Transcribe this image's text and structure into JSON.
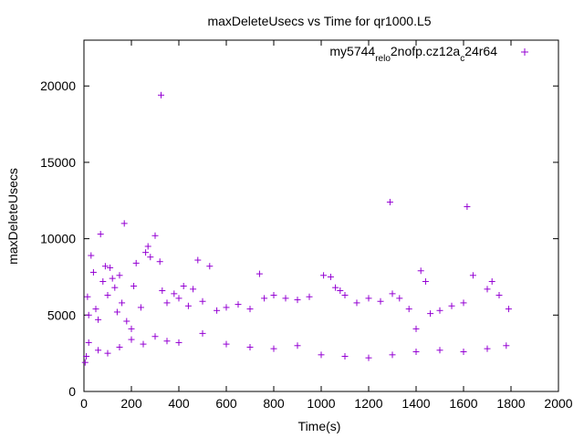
{
  "chart_data": {
    "type": "scatter",
    "title": "maxDeleteUsecs vs Time for qr1000.L5",
    "xlabel": "Time(s)",
    "ylabel": "maxDeleteUsecs",
    "xlim": [
      0,
      2000
    ],
    "ylim": [
      0,
      23000
    ],
    "xticks": [
      "0",
      "200",
      "400",
      "600",
      "800",
      "1000",
      "1200",
      "1400",
      "1600",
      "1800",
      "2000"
    ],
    "yticks": [
      "0",
      "5000",
      "10000",
      "15000",
      "20000"
    ],
    "grid": false,
    "legend_position": "top-right",
    "series": [
      {
        "legend": {
          "parts": [
            "my5744",
            "rel",
            "o",
            "2nofp.cz12a",
            "c",
            "24r64"
          ]
        },
        "color": "#9400d3",
        "marker": "plus",
        "points": [
          [
            5,
            1900
          ],
          [
            10,
            2300
          ],
          [
            15,
            6200
          ],
          [
            20,
            5000
          ],
          [
            30,
            8900
          ],
          [
            40,
            7800
          ],
          [
            50,
            5400
          ],
          [
            60,
            4700
          ],
          [
            70,
            10300
          ],
          [
            80,
            7200
          ],
          [
            90,
            8200
          ],
          [
            100,
            6300
          ],
          [
            110,
            8100
          ],
          [
            120,
            7400
          ],
          [
            130,
            6800
          ],
          [
            140,
            5200
          ],
          [
            150,
            7600
          ],
          [
            160,
            5800
          ],
          [
            170,
            11000
          ],
          [
            180,
            4600
          ],
          [
            200,
            4100
          ],
          [
            210,
            6900
          ],
          [
            220,
            8400
          ],
          [
            240,
            5500
          ],
          [
            260,
            9100
          ],
          [
            270,
            9500
          ],
          [
            280,
            8800
          ],
          [
            300,
            10200
          ],
          [
            320,
            8500
          ],
          [
            325,
            19400
          ],
          [
            330,
            6600
          ],
          [
            350,
            5800
          ],
          [
            380,
            6400
          ],
          [
            400,
            6100
          ],
          [
            420,
            6900
          ],
          [
            440,
            5600
          ],
          [
            460,
            6700
          ],
          [
            480,
            8600
          ],
          [
            500,
            5900
          ],
          [
            530,
            8200
          ],
          [
            560,
            5300
          ],
          [
            600,
            5500
          ],
          [
            650,
            5700
          ],
          [
            700,
            5400
          ],
          [
            740,
            7700
          ],
          [
            760,
            6100
          ],
          [
            800,
            6300
          ],
          [
            850,
            6100
          ],
          [
            900,
            6000
          ],
          [
            950,
            6200
          ],
          [
            1010,
            7600
          ],
          [
            1040,
            7500
          ],
          [
            1060,
            6800
          ],
          [
            1080,
            6600
          ],
          [
            1100,
            6300
          ],
          [
            1150,
            5800
          ],
          [
            1200,
            6100
          ],
          [
            1250,
            5900
          ],
          [
            1290,
            12400
          ],
          [
            1300,
            6400
          ],
          [
            1330,
            6100
          ],
          [
            1370,
            5400
          ],
          [
            1400,
            4100
          ],
          [
            1420,
            7900
          ],
          [
            1440,
            7200
          ],
          [
            1460,
            5100
          ],
          [
            1500,
            5300
          ],
          [
            1550,
            5600
          ],
          [
            1600,
            5800
          ],
          [
            1615,
            12100
          ],
          [
            1640,
            7600
          ],
          [
            1700,
            6700
          ],
          [
            1720,
            7200
          ],
          [
            1750,
            6300
          ],
          [
            1790,
            5400
          ],
          [
            20,
            3200
          ],
          [
            60,
            2700
          ],
          [
            100,
            2500
          ],
          [
            150,
            2900
          ],
          [
            200,
            3400
          ],
          [
            250,
            3100
          ],
          [
            300,
            3600
          ],
          [
            350,
            3300
          ],
          [
            400,
            3200
          ],
          [
            500,
            3800
          ],
          [
            600,
            3100
          ],
          [
            700,
            2900
          ],
          [
            800,
            2800
          ],
          [
            900,
            3000
          ],
          [
            1000,
            2400
          ],
          [
            1100,
            2300
          ],
          [
            1200,
            2200
          ],
          [
            1300,
            2400
          ],
          [
            1400,
            2600
          ],
          [
            1500,
            2700
          ],
          [
            1600,
            2600
          ],
          [
            1700,
            2800
          ],
          [
            1780,
            3000
          ]
        ]
      }
    ]
  }
}
